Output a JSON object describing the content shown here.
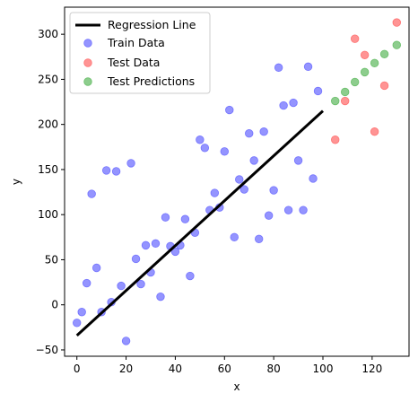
{
  "chart_data": {
    "type": "scatter",
    "xlabel": "x",
    "ylabel": "y",
    "xlim": [
      -5,
      135
    ],
    "ylim": [
      -57,
      330
    ],
    "xticks": [
      0,
      20,
      40,
      60,
      80,
      100,
      120
    ],
    "yticks": [
      -50,
      0,
      50,
      100,
      150,
      200,
      250,
      300
    ],
    "grid": false,
    "legend_position": "top-left",
    "regression_line": {
      "name": "Regression Line",
      "color": "#000000",
      "points": [
        [
          0,
          -34
        ],
        [
          100,
          215
        ]
      ]
    },
    "series": [
      {
        "name": "Train Data",
        "color": "#6666ff",
        "points": [
          [
            0,
            -20
          ],
          [
            2,
            -8
          ],
          [
            4,
            24
          ],
          [
            6,
            123
          ],
          [
            8,
            41
          ],
          [
            10,
            -8
          ],
          [
            12,
            149
          ],
          [
            14,
            3
          ],
          [
            16,
            148
          ],
          [
            18,
            21
          ],
          [
            20,
            -40
          ],
          [
            22,
            157
          ],
          [
            24,
            51
          ],
          [
            26,
            23
          ],
          [
            28,
            66
          ],
          [
            30,
            36
          ],
          [
            32,
            68
          ],
          [
            34,
            9
          ],
          [
            36,
            97
          ],
          [
            38,
            65
          ],
          [
            40,
            59
          ],
          [
            42,
            66
          ],
          [
            44,
            95
          ],
          [
            46,
            32
          ],
          [
            48,
            80
          ],
          [
            50,
            183
          ],
          [
            52,
            174
          ],
          [
            54,
            105
          ],
          [
            56,
            124
          ],
          [
            58,
            108
          ],
          [
            60,
            170
          ],
          [
            62,
            216
          ],
          [
            64,
            75
          ],
          [
            66,
            139
          ],
          [
            68,
            128
          ],
          [
            70,
            190
          ],
          [
            72,
            160
          ],
          [
            74,
            73
          ],
          [
            76,
            192
          ],
          [
            78,
            99
          ],
          [
            80,
            127
          ],
          [
            82,
            263
          ],
          [
            84,
            221
          ],
          [
            86,
            105
          ],
          [
            88,
            224
          ],
          [
            90,
            160
          ],
          [
            92,
            105
          ],
          [
            94,
            264
          ],
          [
            96,
            140
          ],
          [
            98,
            237
          ]
        ]
      },
      {
        "name": "Test Data",
        "color": "#ff6666",
        "points": [
          [
            105,
            183
          ],
          [
            109,
            226
          ],
          [
            113,
            295
          ],
          [
            117,
            277
          ],
          [
            121,
            192
          ],
          [
            125,
            243
          ],
          [
            130,
            313
          ]
        ]
      },
      {
        "name": "Test Predictions",
        "color": "#5cb85c",
        "points": [
          [
            105,
            226
          ],
          [
            109,
            236
          ],
          [
            113,
            247
          ],
          [
            117,
            258
          ],
          [
            121,
            268
          ],
          [
            125,
            278
          ],
          [
            130,
            288
          ]
        ]
      }
    ]
  }
}
